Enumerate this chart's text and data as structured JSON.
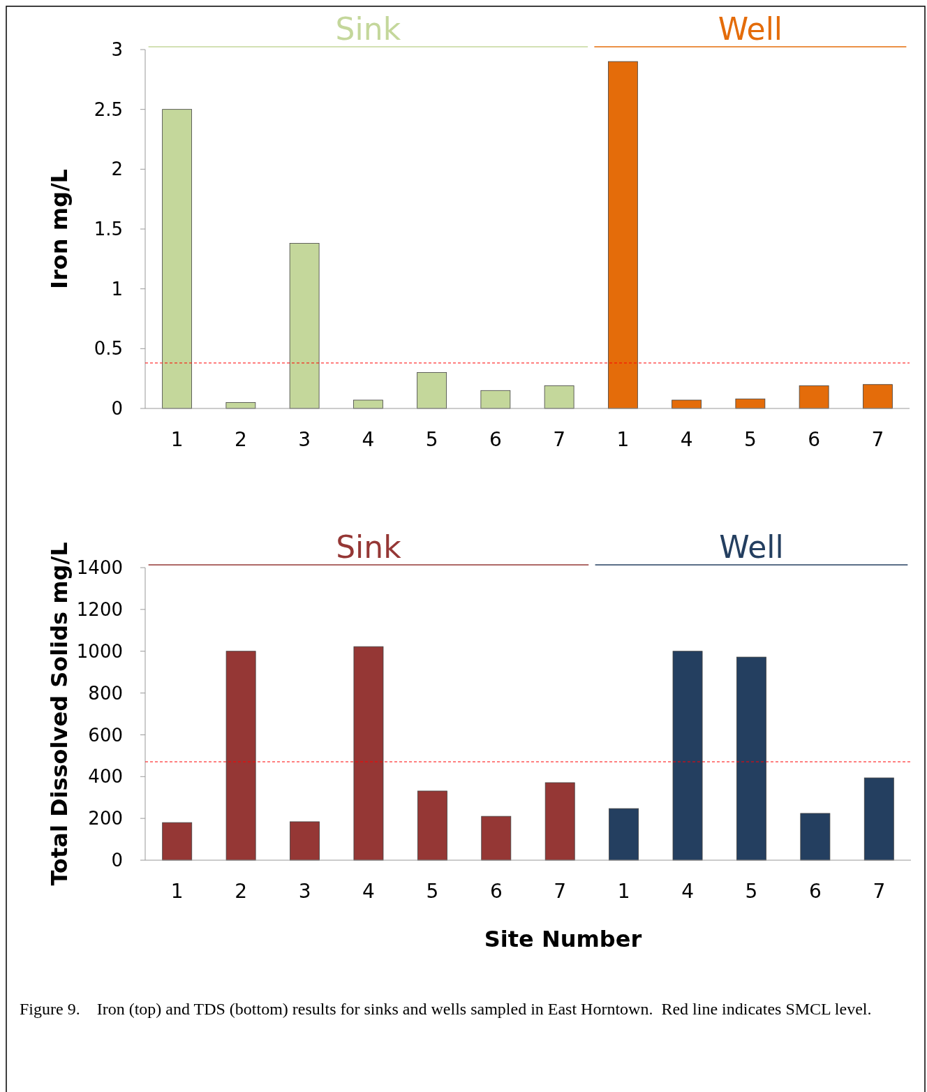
{
  "chart_data": [
    {
      "type": "bar",
      "categories": [
        "1",
        "2",
        "3",
        "4",
        "5",
        "6",
        "7",
        "1",
        "4",
        "5",
        "6",
        "7"
      ],
      "ylabel": "Iron mg/L",
      "ylim": [
        0,
        3
      ],
      "yticks": [
        0,
        0.5,
        1,
        1.5,
        2,
        2.5,
        3
      ],
      "series": [
        {
          "name": "Sink",
          "color": "#c4d79b",
          "values": [
            2.5,
            0.05,
            1.38,
            0.07,
            0.3,
            0.15,
            0.19,
            null,
            null,
            null,
            null,
            null
          ]
        },
        {
          "name": "Well",
          "color": "#e46c0a",
          "values": [
            null,
            null,
            null,
            null,
            null,
            null,
            null,
            2.9,
            0.07,
            0.08,
            0.19,
            0.2
          ]
        }
      ],
      "ref_lines": [
        {
          "axis": "y",
          "value": 0.38,
          "color": "#ff0000",
          "line_style": "dashed"
        }
      ]
    },
    {
      "type": "bar",
      "categories": [
        "1",
        "2",
        "3",
        "4",
        "5",
        "6",
        "7",
        "1",
        "4",
        "5",
        "6",
        "7"
      ],
      "ylabel": "Total Dissolved Solids mg/L",
      "xlabel": "Site Number",
      "ylim": [
        0,
        1400
      ],
      "yticks": [
        0,
        200,
        400,
        600,
        800,
        1000,
        1200,
        1400
      ],
      "series": [
        {
          "name": "Sink",
          "color": "#953735",
          "values": [
            180,
            1000,
            184,
            1022,
            331,
            210,
            371,
            null,
            null,
            null,
            null,
            null
          ]
        },
        {
          "name": "Well",
          "color": "#243f60",
          "values": [
            null,
            null,
            null,
            null,
            null,
            null,
            null,
            247,
            1000,
            972,
            224,
            394
          ]
        }
      ],
      "ref_lines": [
        {
          "axis": "y",
          "value": 471,
          "color": "#ff0000",
          "line_style": "dashed"
        }
      ],
      "annotations": [
        "Figure 9.    Iron (top) and TDS (bottom) results for sinks and wells sampled in East Horntown.  Red line indicates SMCL level."
      ]
    }
  ]
}
